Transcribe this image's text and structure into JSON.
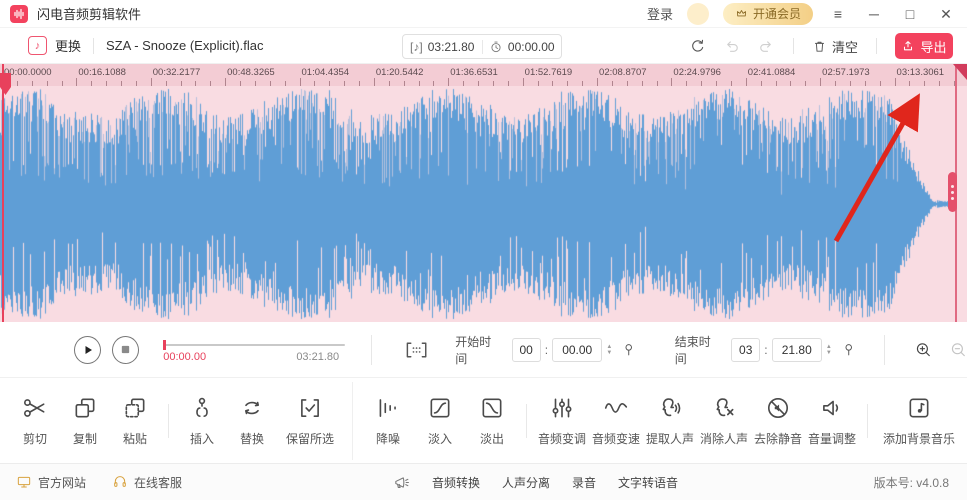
{
  "titlebar": {
    "app_title": "闪电音频剪辑软件",
    "login": "登录",
    "vip": "开通会员",
    "menu_glyph": "≡",
    "minimize_glyph": "─",
    "maximize_glyph": "□",
    "close_glyph": "✕"
  },
  "toolbar": {
    "change": "更换",
    "filename": "SZA - Snooze (Explicit).flac",
    "duration_icon": "[♪]",
    "total_duration": "03:21.80",
    "elapsed": "00:00.00",
    "clear": "清空",
    "export": "导出"
  },
  "timeline": {
    "labels": [
      "00:00.0000",
      "00:16.1088",
      "00:32.2177",
      "00:48.3265",
      "01:04.4354",
      "01:20.5442",
      "01:36.6531",
      "01:52.7619",
      "02:08.8707",
      "02:24.9796",
      "02:41.0884",
      "02:57.1973",
      "03:13.3061"
    ]
  },
  "transport": {
    "progress_current": "00:00.00",
    "progress_total": "03:21.80",
    "start_label": "开始时间",
    "start_min": "00",
    "start_sec": "00.00",
    "end_label": "结束时间",
    "end_min": "03",
    "end_sec": "21.80",
    "colon": ":",
    "spin_up": "▲",
    "spin_down": "▼"
  },
  "tools": [
    {
      "label": "剪切"
    },
    {
      "label": "复制"
    },
    {
      "label": "粘贴"
    },
    {
      "label": "插入"
    },
    {
      "label": "替换"
    },
    {
      "label": "保留所选"
    },
    {
      "label": "降噪"
    },
    {
      "label": "淡入"
    },
    {
      "label": "淡出"
    },
    {
      "label": "音频变调"
    },
    {
      "label": "音频变速"
    },
    {
      "label": "提取人声"
    },
    {
      "label": "消除人声"
    },
    {
      "label": "去除静音"
    },
    {
      "label": "音量调整"
    },
    {
      "label": "添加背景音乐"
    }
  ],
  "statusbar": {
    "website": "官方网站",
    "support": "在线客服",
    "quick_links": [
      "音频转换",
      "人声分离",
      "录音",
      "文字转语音"
    ],
    "version": "版本号: v4.0.8"
  },
  "colors": {
    "accent": "#f3425e",
    "waveform_blue": "#5f9ed6",
    "wave_bg": "#f9dce2",
    "ruler_bg": "#f3ccd4",
    "playhead_red": "#e8415c",
    "arrow_red": "#e0261c",
    "vip_text": "#8a6a26"
  }
}
